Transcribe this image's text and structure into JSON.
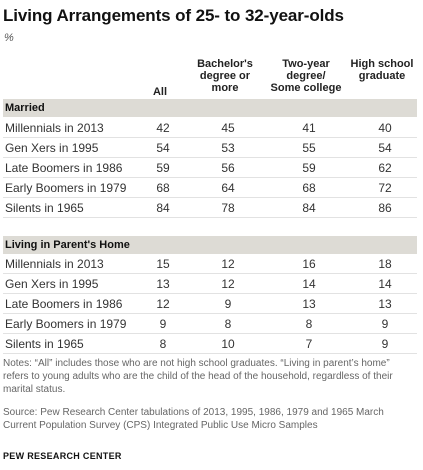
{
  "title": "Living Arrangements  of 25- to 32-year-olds",
  "unit": "%",
  "columns": {
    "all": "All",
    "bachelors": "Bachelor's degree or more",
    "two_year": "Two-year degree/ Some college",
    "high_school": "High school graduate"
  },
  "sections": [
    {
      "label": "Married",
      "rows": [
        {
          "label": "Millennials in 2013",
          "values": [
            "42",
            "45",
            "41",
            "40"
          ]
        },
        {
          "label": "Gen Xers in 1995",
          "values": [
            "54",
            "53",
            "55",
            "54"
          ]
        },
        {
          "label": "Late Boomers in 1986",
          "values": [
            "59",
            "56",
            "59",
            "62"
          ]
        },
        {
          "label": "Early Boomers in 1979",
          "values": [
            "68",
            "64",
            "68",
            "72"
          ]
        },
        {
          "label": "Silents in 1965",
          "values": [
            "84",
            "78",
            "84",
            "86"
          ]
        }
      ]
    },
    {
      "label": "Living in Parent's Home",
      "rows": [
        {
          "label": "Millennials in 2013",
          "values": [
            "15",
            "12",
            "16",
            "18"
          ]
        },
        {
          "label": "Gen Xers in 1995",
          "values": [
            "13",
            "12",
            "14",
            "14"
          ]
        },
        {
          "label": "Late Boomers in 1986",
          "values": [
            "12",
            "9",
            "13",
            "13"
          ]
        },
        {
          "label": "Early Boomers in 1979",
          "values": [
            "9",
            "8",
            "8",
            "9"
          ]
        },
        {
          "label": "Silents in 1965",
          "values": [
            "8",
            "10",
            "7",
            "9"
          ]
        }
      ]
    }
  ],
  "notes": "Notes: “All” includes those who are not high school graduates. “Living in parent’s home” refers to young adults who are the child of the head of the household, regardless of their marital status.",
  "source": "Source: Pew Research Center tabulations of 2013, 1995, 1986, 1979 and 1965 March Current Population Survey (CPS) Integrated Public Use Micro Samples",
  "org": "PEW RESEARCH CENTER",
  "colors": {
    "section_band": "#dddbd5",
    "row_rule": "#e2e2e2",
    "note_text": "#666666"
  }
}
